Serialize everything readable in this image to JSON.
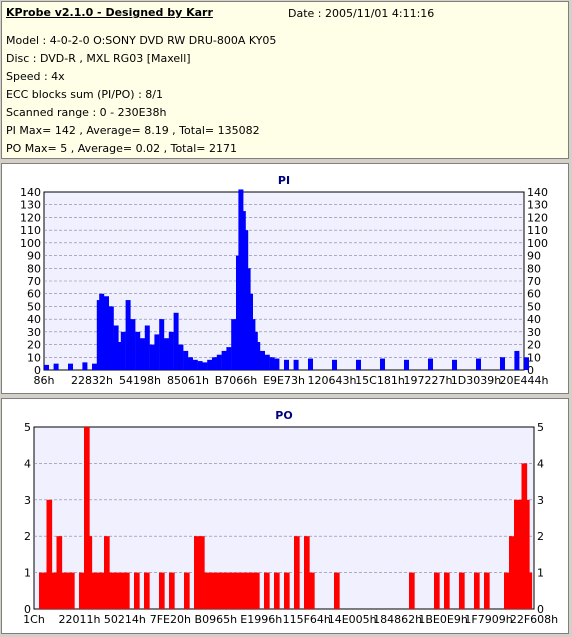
{
  "header": {
    "title": "KProbe v2.1.0 - Designed by Karr",
    "date": "Date : 2005/11/01 4:11:16",
    "lines": [
      "Model : 4-0-2-0 O:SONY    DVD RW DRU-800A  KY05",
      "Disc : DVD-R , MXL RG03 [Maxell]",
      "Speed : 4x",
      "ECC blocks sum (PI/PO) : 8/1",
      "Scanned range : 0 - 230E38h",
      "PI Max= 142 , Average= 8.19 , Total= 135082",
      "PO Max= 5 , Average= 0.02 , Total= 2171"
    ]
  },
  "colors": {
    "plot_bg": "#f0f0ff",
    "grid": "#8080a0",
    "pi_bar": "#0000ff",
    "po_bar": "#ff0000",
    "title_text": "#000080"
  },
  "chart_data": [
    {
      "type": "bar",
      "title": "PI",
      "ylim": [
        0,
        140
      ],
      "y_ticks": [
        "0",
        "10",
        "20",
        "30",
        "40",
        "50",
        "60",
        "70",
        "80",
        "90",
        "100",
        "110",
        "120",
        "130",
        "140"
      ],
      "x_tick_labels": [
        "86h",
        "22832h",
        "54198h",
        "85061h",
        "B7066h",
        "E9E73h",
        "120643h",
        "15C181h",
        "197227h",
        "1D3039h",
        "20E444h"
      ],
      "xlim": [
        0,
        1
      ],
      "series": [
        {
          "values_note": "",
          "x": [
            0.0,
            0.02,
            0.05,
            0.08,
            0.1,
            0.11,
            0.115,
            0.12,
            0.125,
            0.13,
            0.135,
            0.14,
            0.145,
            0.15,
            0.16,
            0.17,
            0.18,
            0.19,
            0.2,
            0.21,
            0.22,
            0.23,
            0.24,
            0.25,
            0.26,
            0.27,
            0.28,
            0.29,
            0.3,
            0.31,
            0.32,
            0.33,
            0.34,
            0.35,
            0.36,
            0.37,
            0.38,
            0.39,
            0.4,
            0.405,
            0.41,
            0.415,
            0.42,
            0.425,
            0.43,
            0.435,
            0.44,
            0.45,
            0.46,
            0.47,
            0.48,
            0.5,
            0.52,
            0.55,
            0.6,
            0.65,
            0.7,
            0.75,
            0.8,
            0.85,
            0.9,
            0.95,
            0.98,
            1.0
          ],
          "values": [
            4,
            5,
            5,
            6,
            5,
            55,
            60,
            40,
            58,
            30,
            50,
            25,
            35,
            22,
            30,
            55,
            40,
            30,
            25,
            35,
            20,
            28,
            40,
            25,
            30,
            45,
            20,
            15,
            10,
            8,
            7,
            6,
            8,
            10,
            12,
            15,
            18,
            40,
            90,
            142,
            125,
            110,
            80,
            60,
            40,
            30,
            22,
            15,
            12,
            10,
            9,
            8,
            8,
            9,
            8,
            8,
            9,
            8,
            9,
            8,
            9,
            10,
            15,
            10
          ]
        }
      ]
    },
    {
      "type": "bar",
      "title": "PO",
      "ylim": [
        0,
        5
      ],
      "y_ticks": [
        "0",
        "1",
        "2",
        "3",
        "4",
        "5"
      ],
      "x_tick_labels": [
        "1Ch",
        "22011h",
        "50214h",
        "7FE20h",
        "B0965h",
        "E1996h",
        "115F64h",
        "14E005h",
        "184862h",
        "1BE0E9h",
        "1F7909h",
        "22F608h"
      ],
      "xlim": [
        0,
        1
      ],
      "series": [
        {
          "x": [
            0.01,
            0.02,
            0.025,
            0.03,
            0.04,
            0.045,
            0.05,
            0.06,
            0.07,
            0.09,
            0.1,
            0.105,
            0.11,
            0.12,
            0.13,
            0.14,
            0.15,
            0.16,
            0.17,
            0.18,
            0.2,
            0.22,
            0.25,
            0.27,
            0.3,
            0.32,
            0.33,
            0.34,
            0.35,
            0.36,
            0.37,
            0.38,
            0.39,
            0.4,
            0.41,
            0.42,
            0.43,
            0.44,
            0.46,
            0.48,
            0.5,
            0.52,
            0.54,
            0.55,
            0.6,
            0.75,
            0.8,
            0.82,
            0.85,
            0.88,
            0.9,
            0.94,
            0.95,
            0.96,
            0.965,
            0.97,
            0.975,
            0.98,
            0.985
          ],
          "values": [
            1,
            1,
            3,
            1,
            1,
            2,
            1,
            1,
            1,
            1,
            5,
            2,
            1,
            1,
            1,
            2,
            1,
            1,
            1,
            1,
            1,
            1,
            1,
            1,
            1,
            2,
            2,
            1,
            1,
            1,
            1,
            1,
            1,
            1,
            1,
            1,
            1,
            1,
            1,
            1,
            1,
            2,
            2,
            1,
            1,
            1,
            1,
            1,
            1,
            1,
            1,
            1,
            2,
            3,
            2,
            3,
            4,
            3,
            1
          ]
        }
      ]
    }
  ]
}
